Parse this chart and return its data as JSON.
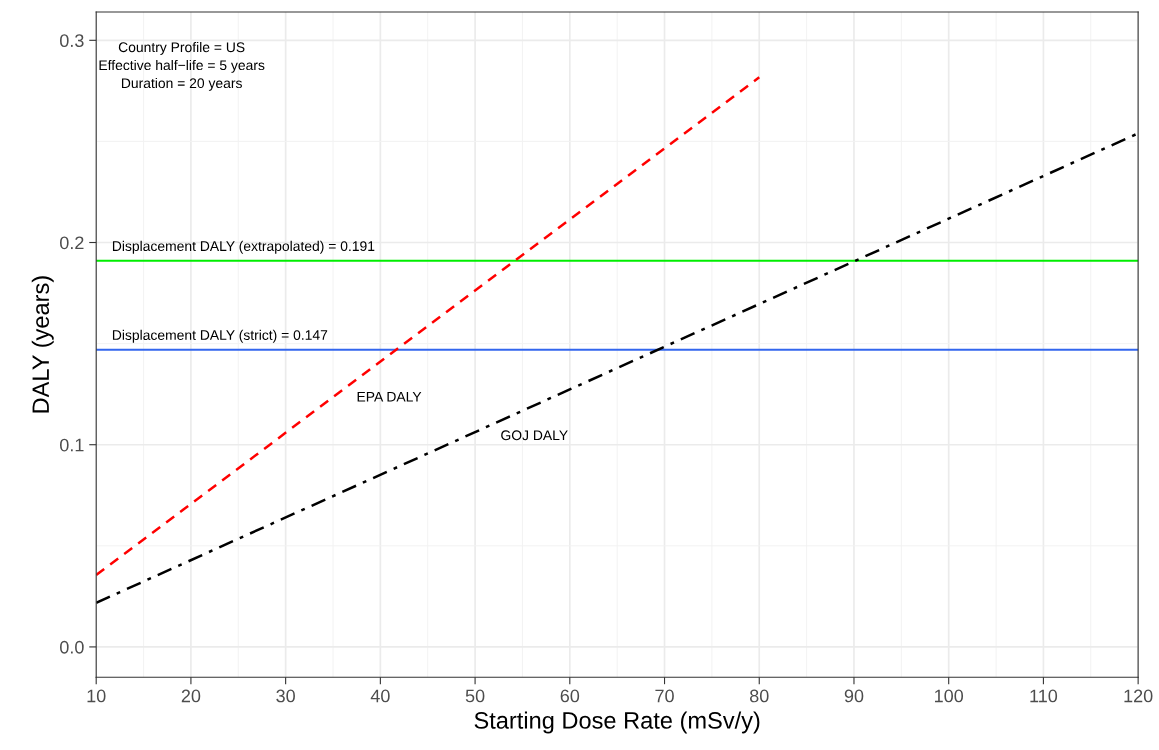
{
  "chart_data": {
    "type": "line",
    "xlabel": "Starting Dose Rate (mSv/y)",
    "ylabel": "DALY (years)",
    "xlim": [
      10,
      120
    ],
    "ylim": [
      -0.015,
      0.314
    ],
    "xticks": [
      10,
      20,
      30,
      40,
      50,
      60,
      70,
      80,
      90,
      100,
      110,
      120
    ],
    "yticks": [
      {
        "value": 0,
        "label": "0.0"
      },
      0.1,
      0.2,
      0.3
    ],
    "grid": true,
    "legend": false,
    "series": [
      {
        "name": "EPA DALY",
        "color": "#ff0000",
        "x": [
          10,
          80
        ],
        "values": [
          0.0356,
          0.2817
        ],
        "line_style": "dashed"
      },
      {
        "name": "GOJ DALY",
        "color": "#000000",
        "x": [
          10,
          120
        ],
        "values": [
          0.0218,
          0.254
        ],
        "line_style": "dashdot"
      }
    ],
    "ref_lines": [
      {
        "axis": "y",
        "value": 0.191,
        "label": "Displacement DALY (extrapolated) = 0.191",
        "color": "#00ee00"
      },
      {
        "axis": "y",
        "value": 0.147,
        "label": "Displacement DALY (strict) = 0.147",
        "color": "#3366ee"
      }
    ],
    "annotations": [
      "Country Profile = US\nEffective half−life = 5 years\nDuration = 20 years"
    ]
  }
}
